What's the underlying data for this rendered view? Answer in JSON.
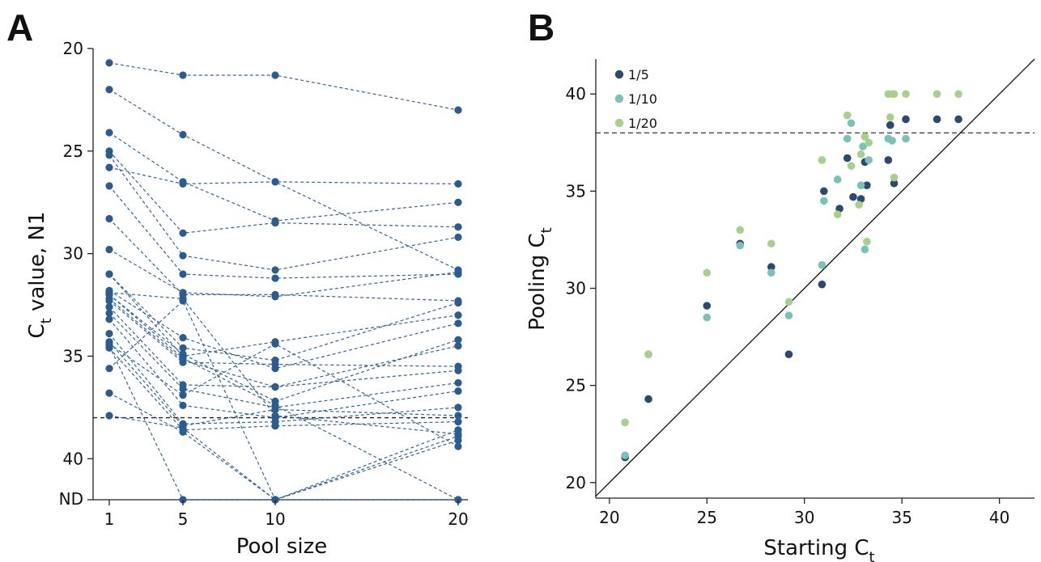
{
  "panels": [
    {
      "label": "A",
      "chart_data": {
        "type": "line",
        "title": "",
        "xlabel": "Pool size",
        "ylabel_main": "C",
        "ylabel_sub": "t",
        "ylabel_rest": " value, N1",
        "x_categories": [
          "1",
          "5",
          "10",
          "20"
        ],
        "y_ticks": [
          "20",
          "25",
          "30",
          "35",
          "40"
        ],
        "y_nd_label": "ND",
        "y_axis_inverted": true,
        "ylim": [
          20,
          42
        ],
        "nd_value": 42,
        "threshold": 38,
        "marker_color": "#2b5c8f",
        "line_color": "#2b5c8f",
        "series": [
          {
            "values": [
              20.7,
              21.3,
              21.3,
              23.0
            ]
          },
          {
            "values": [
              22.0,
              24.2,
              26.5,
              26.6
            ]
          },
          {
            "values": [
              24.1,
              26.5,
              28.4,
              27.5
            ]
          },
          {
            "values": [
              25.0,
              29.0,
              28.5,
              28.7
            ]
          },
          {
            "values": [
              25.2,
              30.1,
              30.8,
              29.2
            ]
          },
          {
            "values": [
              25.8,
              26.6,
              26.5,
              30.8
            ]
          },
          {
            "values": [
              26.7,
              31.0,
              31.2,
              31.0
            ]
          },
          {
            "values": [
              28.3,
              32.0,
              32.0,
              32.3
            ]
          },
          {
            "values": [
              29.8,
              31.9,
              32.1,
              30.9
            ]
          },
          {
            "values": [
              31.0,
              34.6,
              35.2,
              32.4
            ]
          },
          {
            "values": [
              31.0,
              35.0,
              34.3,
              33.0
            ]
          },
          {
            "values": [
              31.8,
              34.1,
              35.6,
              33.4
            ]
          },
          {
            "values": [
              32.0,
              34.9,
              37.2,
              34.2
            ]
          },
          {
            "values": [
              32.2,
              35.2,
              36.5,
              34.5
            ]
          },
          {
            "values": [
              32.3,
              35.3,
              35.4,
              35.5
            ]
          },
          {
            "values": [
              32.6,
              36.4,
              36.5,
              35.7
            ]
          },
          {
            "values": [
              32.9,
              36.6,
              37.5,
              36.3
            ]
          },
          {
            "values": [
              33.2,
              37.4,
              38.0,
              36.7
            ]
          },
          {
            "values": [
              33.9,
              38.3,
              38.2,
              37.5
            ]
          },
          {
            "values": [
              34.3,
              38.4,
              37.6,
              37.9
            ]
          },
          {
            "values": [
              34.6,
              38.6,
              38.4,
              38.2
            ]
          },
          {
            "values": [
              35.6,
              32.3,
              42.0,
              38.6
            ]
          },
          {
            "values": [
              36.8,
              38.7,
              42.0,
              38.9
            ]
          },
          {
            "values": [
              37.9,
              38.5,
              42.0,
              39.1
            ]
          },
          {
            "values": [
              34.4,
              36.9,
              34.4,
              39.4
            ]
          },
          {
            "values": [
              34.5,
              42.0,
              42.0,
              42.0
            ]
          },
          {
            "values": [
              32.0,
              35.1,
              37.4,
              42.0
            ]
          },
          {
            "values": [
              31.9,
              32.2,
              37.9,
              38.8
            ]
          }
        ]
      }
    },
    {
      "label": "B",
      "chart_data": {
        "type": "scatter",
        "title": "",
        "xlabel_main": "Starting C",
        "xlabel_sub": "t",
        "ylabel_main": "Pooling C",
        "ylabel_sub": "t",
        "xlim": [
          19.3,
          41.8
        ],
        "ylim": [
          19.2,
          41.8
        ],
        "x_ticks": [
          "20",
          "25",
          "30",
          "35",
          "40"
        ],
        "y_ticks": [
          "20",
          "25",
          "30",
          "35",
          "40"
        ],
        "threshold": 38,
        "identity_line": true,
        "legend_position": "top-left",
        "series": [
          {
            "name": "1/5",
            "color": "#2c4a6b",
            "points": [
              [
                20.8,
                21.3
              ],
              [
                22.0,
                24.3
              ],
              [
                25.0,
                29.1
              ],
              [
                26.7,
                32.3
              ],
              [
                28.3,
                31.1
              ],
              [
                29.2,
                26.6
              ],
              [
                30.9,
                30.2
              ],
              [
                31.0,
                35.0
              ],
              [
                31.8,
                34.1
              ],
              [
                32.2,
                36.7
              ],
              [
                32.5,
                34.7
              ],
              [
                32.9,
                34.6
              ],
              [
                33.2,
                35.3
              ],
              [
                33.1,
                36.5
              ],
              [
                34.3,
                36.6
              ],
              [
                34.4,
                38.4
              ],
              [
                34.6,
                35.4
              ],
              [
                35.2,
                38.7
              ],
              [
                36.8,
                38.7
              ],
              [
                37.9,
                38.7
              ]
            ]
          },
          {
            "name": "1/10",
            "color": "#7cc0ba",
            "points": [
              [
                20.8,
                21.4
              ],
              [
                22.0,
                26.6
              ],
              [
                25.0,
                28.5
              ],
              [
                26.7,
                32.2
              ],
              [
                28.3,
                30.8
              ],
              [
                29.2,
                28.6
              ],
              [
                30.9,
                31.2
              ],
              [
                31.0,
                34.5
              ],
              [
                31.7,
                35.6
              ],
              [
                32.2,
                37.7
              ],
              [
                32.4,
                38.5
              ],
              [
                32.9,
                35.3
              ],
              [
                33.0,
                37.3
              ],
              [
                33.1,
                32.0
              ],
              [
                33.3,
                36.6
              ],
              [
                34.3,
                37.7
              ],
              [
                34.5,
                37.6
              ],
              [
                35.2,
                37.7
              ]
            ]
          },
          {
            "name": "1/20",
            "color": "#a8d08d",
            "points": [
              [
                20.8,
                23.1
              ],
              [
                22.0,
                26.6
              ],
              [
                25.0,
                30.8
              ],
              [
                26.7,
                33.0
              ],
              [
                28.3,
                32.3
              ],
              [
                29.2,
                29.3
              ],
              [
                30.9,
                36.6
              ],
              [
                31.7,
                33.8
              ],
              [
                32.2,
                38.9
              ],
              [
                32.4,
                36.3
              ],
              [
                32.8,
                34.3
              ],
              [
                32.9,
                36.9
              ],
              [
                33.1,
                37.8
              ],
              [
                33.3,
                37.5
              ],
              [
                33.2,
                32.4
              ],
              [
                34.3,
                40.0
              ],
              [
                34.4,
                38.8
              ],
              [
                34.5,
                40.0
              ],
              [
                34.6,
                35.7
              ],
              [
                34.6,
                40.0
              ],
              [
                35.2,
                40.0
              ],
              [
                36.8,
                40.0
              ],
              [
                37.9,
                40.0
              ]
            ]
          }
        ]
      }
    }
  ]
}
